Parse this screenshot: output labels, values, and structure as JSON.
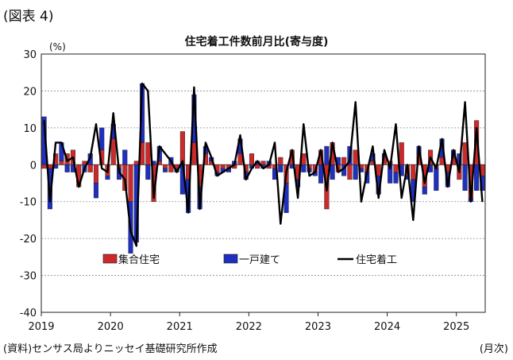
{
  "figure_label": "(図表 4)",
  "unit_label": "(%)",
  "source": "(資料)センサス局よりニッセイ基礎研究所作成",
  "month_label": "(月次)",
  "colors": {
    "multi": "#cc2a2a",
    "single": "#1f2fbf",
    "total": "#000000",
    "grid": "#8c8c8c",
    "outline": "#1a1a1a"
  },
  "chart_data": {
    "type": "bar",
    "title": "住宅着工件数前月比(寄与度)",
    "ylim": [
      -40,
      30
    ],
    "yticks": [
      30,
      20,
      10,
      0,
      -10,
      -20,
      -30,
      -40
    ],
    "years": [
      "2019",
      "2020",
      "2021",
      "2022",
      "2023",
      "2024",
      "2025"
    ],
    "x": [
      "2019-01",
      "2019-02",
      "2019-03",
      "2019-04",
      "2019-05",
      "2019-06",
      "2019-07",
      "2019-08",
      "2019-09",
      "2019-10",
      "2019-11",
      "2019-12",
      "2020-01",
      "2020-02",
      "2020-03",
      "2020-04",
      "2020-05",
      "2020-06",
      "2020-07",
      "2020-08",
      "2020-09",
      "2020-10",
      "2020-11",
      "2020-12",
      "2021-01",
      "2021-02",
      "2021-03",
      "2021-04",
      "2021-05",
      "2021-06",
      "2021-07",
      "2021-08",
      "2021-09",
      "2021-10",
      "2021-11",
      "2021-12",
      "2022-01",
      "2022-02",
      "2022-03",
      "2022-04",
      "2022-05",
      "2022-06",
      "2022-07",
      "2022-08",
      "2022-09",
      "2022-10",
      "2022-11",
      "2022-12",
      "2023-01",
      "2023-02",
      "2023-03",
      "2023-04",
      "2023-05",
      "2023-06",
      "2023-07",
      "2023-08",
      "2023-09",
      "2023-10",
      "2023-11",
      "2023-12",
      "2024-01",
      "2024-02",
      "2024-03",
      "2024-04",
      "2024-05",
      "2024-06",
      "2024-07",
      "2024-08",
      "2024-09",
      "2024-10",
      "2024-11",
      "2024-12",
      "2025-01",
      "2025-02",
      "2025-03",
      "2025-04",
      "2025-05"
    ],
    "series": [
      {
        "name": "集合住宅",
        "kind": "bar",
        "values": [
          -1,
          -1,
          3,
          1,
          3,
          4,
          -6,
          1,
          -2,
          -5,
          4,
          -3,
          7,
          -1,
          -7,
          -10,
          1,
          6,
          6,
          -10,
          1,
          -1,
          -2,
          -1,
          9,
          -4,
          6,
          -6,
          3,
          1,
          -2,
          -1,
          -1,
          -1,
          3,
          -2,
          3,
          -1,
          1,
          -1,
          -1,
          2,
          -5,
          4,
          -4,
          3,
          -1,
          -2,
          4,
          -12,
          6,
          -2,
          2,
          -4,
          4,
          -1,
          -2,
          1,
          -3,
          2,
          1,
          -2,
          6,
          -3,
          -4,
          3,
          -6,
          4,
          -1,
          2,
          -2,
          2,
          -4,
          6,
          -9,
          12,
          -3
        ]
      },
      {
        "name": "一戸建て",
        "kind": "bar",
        "values": [
          13,
          -11,
          -1,
          5,
          -2,
          -2,
          0,
          -2,
          3,
          -4,
          6,
          -1,
          4,
          -3,
          4,
          -14,
          -21,
          16,
          -4,
          1,
          4,
          -1,
          2,
          -1,
          -8,
          -9,
          13,
          -6,
          2,
          1,
          -1,
          -1,
          -1,
          1,
          4,
          -2,
          -1,
          1,
          -1,
          1,
          -3,
          -2,
          -8,
          -1,
          -2,
          -2,
          -1,
          -1,
          -5,
          5,
          -4,
          2,
          -3,
          5,
          -4,
          -1,
          -3,
          2,
          -5,
          1,
          -5,
          -3,
          -3,
          -1,
          -6,
          2,
          -2,
          -2,
          -6,
          5,
          -4,
          2,
          3,
          -7,
          -1,
          -7,
          -4
        ]
      },
      {
        "name": "住宅着工",
        "kind": "line",
        "values": [
          12,
          -10,
          6,
          6,
          1,
          2,
          -6,
          -1,
          2,
          11,
          -1,
          -2,
          14,
          -2,
          -4,
          -18,
          -22,
          22,
          20,
          -9,
          5,
          3,
          1,
          -2,
          1,
          -13,
          21,
          -12,
          6,
          2,
          -3,
          -2,
          -1,
          0,
          8,
          -4,
          -1,
          1,
          -1,
          0,
          6,
          -16,
          -2,
          4,
          -9,
          11,
          -3,
          -2,
          4,
          -7,
          6,
          -2,
          -1,
          1,
          17,
          -10,
          -2,
          5,
          -9,
          4,
          -1,
          11,
          -9,
          0,
          -15,
          5,
          -5,
          2,
          -1,
          7,
          -6,
          4,
          -2,
          17,
          -10,
          10,
          -10
        ]
      }
    ]
  },
  "legend": {
    "multi": "集合住宅",
    "single": "一戸建て",
    "total": "住宅着工"
  }
}
